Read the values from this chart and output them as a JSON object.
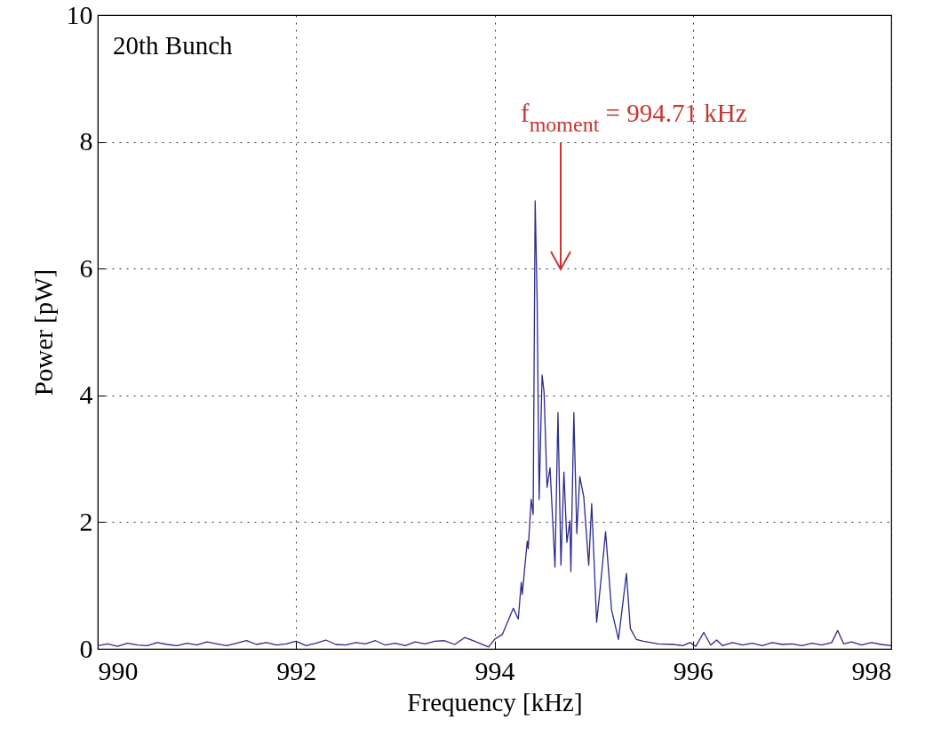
{
  "chart_data": {
    "type": "line",
    "xlabel": "Frequency [kHz]",
    "ylabel": "Power [pW]",
    "xlim": [
      990,
      998
    ],
    "ylim": [
      0,
      10
    ],
    "xticks": [
      990,
      992,
      994,
      996,
      998
    ],
    "yticks": [
      0,
      2,
      4,
      6,
      8,
      10
    ],
    "grid": true,
    "line_style": "solid",
    "annotations": [
      "20th Bunch",
      "f$_{moment}$ = 994.71 kHz"
    ],
    "series": [
      {
        "color": "#2b2b8c",
        "x": [
          990.0,
          990.1,
          990.2,
          990.3,
          990.4,
          990.5,
          990.6,
          990.7,
          990.8,
          990.9,
          991.0,
          991.1,
          991.2,
          991.3,
          991.4,
          991.5,
          991.6,
          991.7,
          991.8,
          991.9,
          992.0,
          992.1,
          992.2,
          992.3,
          992.4,
          992.5,
          992.6,
          992.7,
          992.8,
          992.9,
          993.0,
          993.1,
          993.2,
          993.3,
          993.4,
          993.49,
          993.6,
          993.7,
          993.8,
          993.94,
          994.0,
          994.08,
          994.19,
          994.24,
          994.27,
          994.28,
          994.33,
          994.34,
          994.37,
          994.39,
          994.41,
          994.43,
          994.45,
          994.48,
          994.5,
          994.53,
          994.56,
          994.61,
          994.64,
          994.67,
          994.7,
          994.73,
          994.76,
          994.77,
          994.8,
          994.83,
          994.86,
          994.9,
          994.95,
          994.98,
          995.03,
          995.07,
          995.12,
          995.18,
          995.25,
          995.33,
          995.37,
          995.43,
          995.5,
          995.65,
          995.81,
          995.9,
          995.97,
          996.03,
          996.11,
          996.18,
          996.24,
          996.3,
          996.4,
          996.5,
          996.6,
          996.7,
          996.8,
          996.9,
          997.0,
          997.1,
          997.2,
          997.3,
          997.4,
          997.46,
          997.52,
          997.6,
          997.7,
          997.8,
          997.9,
          998.0
        ],
        "values": [
          0.05,
          0.08,
          0.04,
          0.09,
          0.06,
          0.05,
          0.1,
          0.07,
          0.05,
          0.09,
          0.06,
          0.11,
          0.08,
          0.05,
          0.09,
          0.13,
          0.07,
          0.1,
          0.06,
          0.08,
          0.12,
          0.05,
          0.09,
          0.14,
          0.07,
          0.06,
          0.1,
          0.08,
          0.13,
          0.06,
          0.09,
          0.05,
          0.11,
          0.08,
          0.12,
          0.13,
          0.07,
          0.18,
          0.12,
          0.03,
          0.15,
          0.23,
          0.64,
          0.47,
          1.05,
          0.86,
          1.7,
          1.58,
          2.36,
          2.12,
          7.07,
          5.5,
          2.36,
          4.32,
          4.05,
          2.55,
          2.86,
          1.29,
          3.73,
          1.32,
          2.79,
          1.68,
          2.02,
          1.22,
          3.73,
          1.82,
          2.72,
          2.4,
          1.32,
          2.29,
          0.42,
          1.02,
          1.85,
          0.62,
          0.15,
          1.19,
          0.32,
          0.15,
          0.12,
          0.08,
          0.07,
          0.05,
          0.1,
          0.04,
          0.26,
          0.06,
          0.14,
          0.05,
          0.1,
          0.06,
          0.09,
          0.05,
          0.1,
          0.07,
          0.08,
          0.05,
          0.09,
          0.06,
          0.1,
          0.29,
          0.08,
          0.11,
          0.06,
          0.1,
          0.07,
          0.05
        ]
      }
    ]
  }
}
